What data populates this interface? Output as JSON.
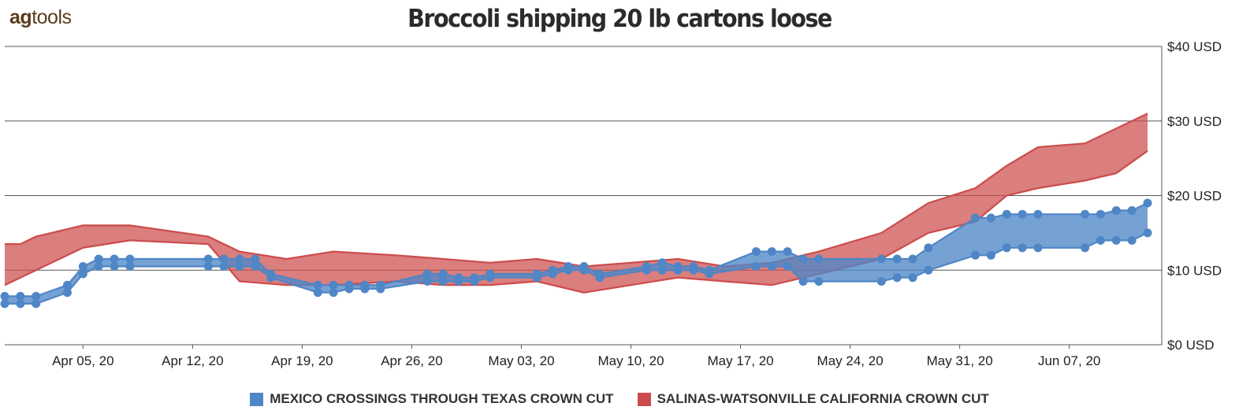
{
  "logo": {
    "bold": "ag",
    "rest": "tools"
  },
  "chart_data": {
    "type": "area",
    "title": "Broccoli shipping  20 lb cartons loose",
    "xlabel": "",
    "ylabel": "",
    "ylim": [
      0,
      40
    ],
    "yticks": [
      "$0 USD",
      "$10 USD",
      "$20 USD",
      "$30 USD",
      "$40 USD"
    ],
    "ytick_values": [
      0,
      10,
      20,
      30,
      40
    ],
    "x_start": "2020-03-31",
    "x_end": "2020-06-12",
    "xticks": [
      {
        "date": "2020-04-05",
        "label": "Apr 05, 20"
      },
      {
        "date": "2020-04-12",
        "label": "Apr 12, 20"
      },
      {
        "date": "2020-04-19",
        "label": "Apr 19, 20"
      },
      {
        "date": "2020-04-26",
        "label": "Apr 26, 20"
      },
      {
        "date": "2020-05-03",
        "label": "May 03, 20"
      },
      {
        "date": "2020-05-10",
        "label": "May 10, 20"
      },
      {
        "date": "2020-05-17",
        "label": "May 17, 20"
      },
      {
        "date": "2020-05-24",
        "label": "May 24, 20"
      },
      {
        "date": "2020-05-31",
        "label": "May 31, 20"
      },
      {
        "date": "2020-06-07",
        "label": "Jun 07, 20"
      }
    ],
    "grid": true,
    "legend_position": "bottom",
    "series": [
      {
        "name": "MEXICO CROSSINGS THROUGH TEXAS  CROWN CUT",
        "color": "#4f86c6",
        "markers": true,
        "points": [
          [
            "2020-03-31",
            5.5,
            6.5
          ],
          [
            "2020-04-01",
            5.5,
            6.5
          ],
          [
            "2020-04-02",
            5.5,
            6.5
          ],
          [
            "2020-04-04",
            7.0,
            8.0
          ],
          [
            "2020-04-05",
            9.5,
            10.5
          ],
          [
            "2020-04-06",
            10.5,
            11.5
          ],
          [
            "2020-04-07",
            10.5,
            11.5
          ],
          [
            "2020-04-08",
            10.5,
            11.5
          ],
          [
            "2020-04-13",
            10.5,
            11.5
          ],
          [
            "2020-04-14",
            10.5,
            11.5
          ],
          [
            "2020-04-15",
            10.5,
            11.5
          ],
          [
            "2020-04-16",
            10.5,
            11.5
          ],
          [
            "2020-04-17",
            9.0,
            9.5
          ],
          [
            "2020-04-20",
            7.0,
            8.0
          ],
          [
            "2020-04-21",
            7.0,
            8.0
          ],
          [
            "2020-04-22",
            7.5,
            8.0
          ],
          [
            "2020-04-23",
            7.5,
            8.0
          ],
          [
            "2020-04-24",
            7.5,
            8.0
          ],
          [
            "2020-04-27",
            8.5,
            9.5
          ],
          [
            "2020-04-28",
            8.5,
            9.5
          ],
          [
            "2020-04-29",
            8.5,
            9.0
          ],
          [
            "2020-04-30",
            8.5,
            9.0
          ],
          [
            "2020-05-01",
            9.0,
            9.5
          ],
          [
            "2020-05-04",
            9.0,
            9.5
          ],
          [
            "2020-05-05",
            9.5,
            10.0
          ],
          [
            "2020-05-06",
            10.0,
            10.5
          ],
          [
            "2020-05-07",
            10.0,
            10.5
          ],
          [
            "2020-05-08",
            9.0,
            9.5
          ],
          [
            "2020-05-11",
            10.0,
            10.5
          ],
          [
            "2020-05-12",
            10.0,
            11.0
          ],
          [
            "2020-05-13",
            10.0,
            10.5
          ],
          [
            "2020-05-14",
            10.0,
            10.5
          ],
          [
            "2020-05-15",
            9.5,
            10.0
          ],
          [
            "2020-05-18",
            10.5,
            12.5
          ],
          [
            "2020-05-19",
            10.5,
            12.5
          ],
          [
            "2020-05-20",
            10.5,
            12.5
          ],
          [
            "2020-05-21",
            8.5,
            11.5
          ],
          [
            "2020-05-22",
            8.5,
            11.5
          ],
          [
            "2020-05-26",
            8.5,
            11.5
          ],
          [
            "2020-05-27",
            9.0,
            11.5
          ],
          [
            "2020-05-28",
            9.0,
            11.5
          ],
          [
            "2020-05-29",
            10.0,
            13.0
          ],
          [
            "2020-06-01",
            12.0,
            17.0
          ],
          [
            "2020-06-02",
            12.0,
            17.0
          ],
          [
            "2020-06-03",
            13.0,
            17.5
          ],
          [
            "2020-06-04",
            13.0,
            17.5
          ],
          [
            "2020-06-05",
            13.0,
            17.5
          ],
          [
            "2020-06-08",
            13.0,
            17.5
          ],
          [
            "2020-06-09",
            14.0,
            17.5
          ],
          [
            "2020-06-10",
            14.0,
            18.0
          ],
          [
            "2020-06-11",
            14.0,
            18.0
          ],
          [
            "2020-06-12",
            15.0,
            19.0
          ]
        ]
      },
      {
        "name": "SALINAS-WATSONVILLE CALIFORNIA  CROWN CUT",
        "color": "#cc4c4c",
        "markers": false,
        "points": [
          [
            "2020-03-31",
            8.0,
            13.5
          ],
          [
            "2020-04-01",
            9.0,
            13.5
          ],
          [
            "2020-04-02",
            10.0,
            14.5
          ],
          [
            "2020-04-05",
            13.0,
            16.0
          ],
          [
            "2020-04-08",
            14.0,
            16.0
          ],
          [
            "2020-04-13",
            13.5,
            14.5
          ],
          [
            "2020-04-15",
            8.5,
            12.5
          ],
          [
            "2020-04-18",
            8.0,
            11.5
          ],
          [
            "2020-04-21",
            8.0,
            12.5
          ],
          [
            "2020-04-25",
            8.5,
            12.0
          ],
          [
            "2020-04-28",
            8.0,
            11.5
          ],
          [
            "2020-05-01",
            8.0,
            11.0
          ],
          [
            "2020-05-04",
            8.5,
            11.5
          ],
          [
            "2020-05-07",
            7.0,
            10.5
          ],
          [
            "2020-05-10",
            8.0,
            11.0
          ],
          [
            "2020-05-13",
            9.0,
            11.5
          ],
          [
            "2020-05-16",
            8.5,
            10.5
          ],
          [
            "2020-05-19",
            8.0,
            11.0
          ],
          [
            "2020-05-22",
            9.5,
            12.5
          ],
          [
            "2020-05-26",
            11.5,
            15.0
          ],
          [
            "2020-05-29",
            15.0,
            19.0
          ],
          [
            "2020-06-01",
            16.5,
            21.0
          ],
          [
            "2020-06-03",
            20.0,
            24.0
          ],
          [
            "2020-06-05",
            21.0,
            26.5
          ],
          [
            "2020-06-08",
            22.0,
            27.0
          ],
          [
            "2020-06-10",
            23.0,
            29.0
          ],
          [
            "2020-06-12",
            26.0,
            31.0
          ]
        ]
      }
    ]
  }
}
